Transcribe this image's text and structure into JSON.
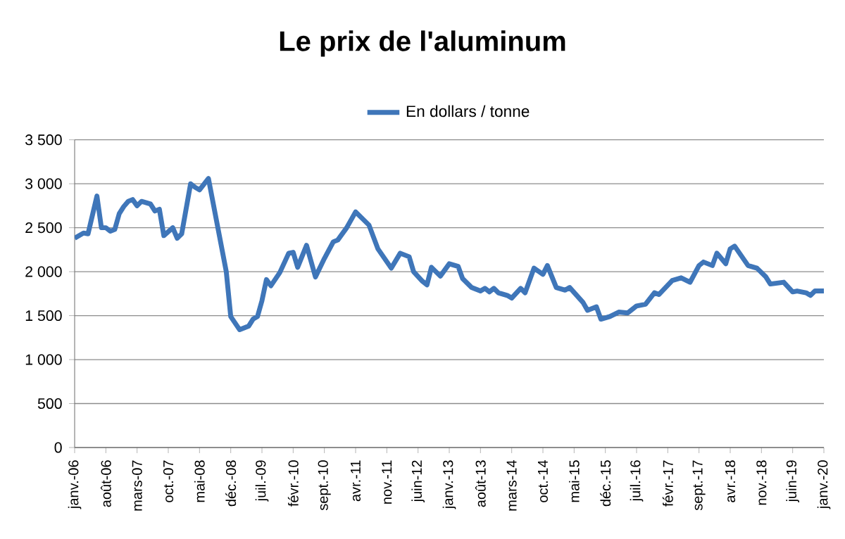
{
  "chart_data": {
    "type": "line",
    "title": "Le prix de l'aluminum",
    "legend": "top",
    "grid": "y",
    "marker": "none",
    "line_style": "solid",
    "xlim": [
      "2006-01",
      "2020-01"
    ],
    "xticks": [
      {
        "value": "2006-01",
        "label": "janv.-06"
      },
      {
        "value": "2006-08",
        "label": "août-06"
      },
      {
        "value": "2007-03",
        "label": "mars-07"
      },
      {
        "value": "2007-10",
        "label": "oct.-07"
      },
      {
        "value": "2008-05",
        "label": "mai-08"
      },
      {
        "value": "2008-12",
        "label": "déc.-08"
      },
      {
        "value": "2009-07",
        "label": "juil.-09"
      },
      {
        "value": "2010-02",
        "label": "févr.-10"
      },
      {
        "value": "2010-09",
        "label": "sept.-10"
      },
      {
        "value": "2011-04",
        "label": "avr.-11"
      },
      {
        "value": "2011-11",
        "label": "nov.-11"
      },
      {
        "value": "2012-06",
        "label": "juin-12"
      },
      {
        "value": "2013-01",
        "label": "janv.-13"
      },
      {
        "value": "2013-08",
        "label": "août-13"
      },
      {
        "value": "2014-03",
        "label": "mars-14"
      },
      {
        "value": "2014-10",
        "label": "oct.-14"
      },
      {
        "value": "2015-05",
        "label": "mai-15"
      },
      {
        "value": "2015-12",
        "label": "déc.-15"
      },
      {
        "value": "2016-07",
        "label": "juil.-16"
      },
      {
        "value": "2017-02",
        "label": "févr.-17"
      },
      {
        "value": "2017-09",
        "label": "sept.-17"
      },
      {
        "value": "2018-04",
        "label": "avr.-18"
      },
      {
        "value": "2018-11",
        "label": "nov.-18"
      },
      {
        "value": "2019-06",
        "label": "juin-19"
      },
      {
        "value": "2020-01",
        "label": "janv.-20"
      }
    ],
    "ylim": [
      0,
      3500
    ],
    "yticks": [
      0,
      500,
      {
        "value": 1000,
        "label": "1 000"
      },
      {
        "value": 1500,
        "label": "1 500"
      },
      {
        "value": 2000,
        "label": "2 000"
      },
      {
        "value": 2500,
        "label": "2 500"
      },
      {
        "value": 3000,
        "label": "3 000"
      },
      {
        "value": 3500,
        "label": "3 500"
      }
    ],
    "x": [
      "2006-01",
      "2006-03",
      "2006-04",
      "2006-06",
      "2006-07",
      "2006-08",
      "2006-09",
      "2006-10",
      "2006-11",
      "2006-12",
      "2007-01",
      "2007-02",
      "2007-03",
      "2007-04",
      "2007-06",
      "2007-07",
      "2007-08",
      "2007-09",
      "2007-11",
      "2007-12",
      "2008-01",
      "2008-03",
      "2008-04",
      "2008-05",
      "2008-07",
      "2008-09",
      "2008-11",
      "2008-12",
      "2009-02",
      "2009-04",
      "2009-05",
      "2009-06",
      "2009-07",
      "2009-08",
      "2009-09",
      "2009-11",
      "2010-01",
      "2010-02",
      "2010-03",
      "2010-05",
      "2010-07",
      "2010-09",
      "2010-11",
      "2010-12",
      "2011-02",
      "2011-04",
      "2011-06",
      "2011-07",
      "2011-09",
      "2011-12",
      "2012-02",
      "2012-04",
      "2012-05",
      "2012-07",
      "2012-08",
      "2012-09",
      "2012-11",
      "2013-01",
      "2013-03",
      "2013-04",
      "2013-06",
      "2013-08",
      "2013-09",
      "2013-10",
      "2013-11",
      "2013-12",
      "2014-02",
      "2014-03",
      "2014-05",
      "2014-06",
      "2014-08",
      "2014-10",
      "2014-11",
      "2015-01",
      "2015-03",
      "2015-04",
      "2015-07",
      "2015-08",
      "2015-10",
      "2015-11",
      "2016-01",
      "2016-03",
      "2016-05",
      "2016-07",
      "2016-09",
      "2016-11",
      "2016-12",
      "2017-03",
      "2017-05",
      "2017-07",
      "2017-09",
      "2017-10",
      "2017-12",
      "2018-01",
      "2018-03",
      "2018-04",
      "2018-05",
      "2018-08",
      "2018-10",
      "2018-12",
      "2019-01",
      "2019-04",
      "2019-06",
      "2019-07",
      "2019-09",
      "2019-10",
      "2019-11",
      "2020-01"
    ],
    "series": [
      {
        "name": "En dollars / tonne",
        "color": "#3f76b9",
        "values": [
          2380,
          2440,
          2430,
          2860,
          2500,
          2500,
          2460,
          2480,
          2660,
          2740,
          2800,
          2820,
          2750,
          2800,
          2770,
          2690,
          2710,
          2410,
          2500,
          2380,
          2430,
          3000,
          2960,
          2930,
          3060,
          2530,
          2000,
          1490,
          1340,
          1380,
          1460,
          1490,
          1670,
          1910,
          1840,
          1990,
          2210,
          2220,
          2050,
          2300,
          1940,
          2150,
          2340,
          2360,
          2500,
          2680,
          2580,
          2530,
          2260,
          2040,
          2210,
          2170,
          2000,
          1890,
          1850,
          2050,
          1950,
          2090,
          2060,
          1920,
          1820,
          1780,
          1810,
          1770,
          1810,
          1760,
          1730,
          1700,
          1810,
          1760,
          2040,
          1970,
          2070,
          1820,
          1790,
          1820,
          1650,
          1560,
          1600,
          1460,
          1490,
          1540,
          1530,
          1610,
          1630,
          1760,
          1740,
          1900,
          1930,
          1880,
          2070,
          2110,
          2070,
          2210,
          2090,
          2260,
          2290,
          2070,
          2040,
          1940,
          1860,
          1880,
          1770,
          1780,
          1760,
          1730,
          1780,
          1780
        ]
      }
    ]
  }
}
